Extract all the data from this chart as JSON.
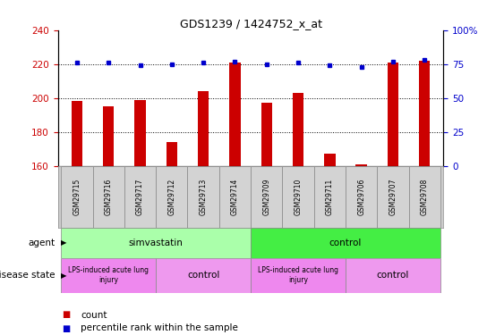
{
  "title": "GDS1239 / 1424752_x_at",
  "samples": [
    "GSM29715",
    "GSM29716",
    "GSM29717",
    "GSM29712",
    "GSM29713",
    "GSM29714",
    "GSM29709",
    "GSM29710",
    "GSM29711",
    "GSM29706",
    "GSM29707",
    "GSM29708"
  ],
  "count_values": [
    198,
    195,
    199,
    174,
    204,
    221,
    197,
    203,
    167,
    161,
    221,
    222
  ],
  "percentile_values": [
    76,
    76,
    74,
    75,
    76,
    77,
    75,
    76,
    74,
    73,
    77,
    78
  ],
  "ylim_left": [
    160,
    240
  ],
  "ylim_right": [
    0,
    100
  ],
  "yticks_left": [
    160,
    180,
    200,
    220,
    240
  ],
  "yticks_right": [
    0,
    25,
    50,
    75,
    100
  ],
  "bar_color": "#cc0000",
  "dot_color": "#0000cc",
  "bg_color": "#ffffff",
  "plot_bg": "#ffffff",
  "agent_simvastatin_color": "#aaffaa",
  "agent_control_color": "#44ee44",
  "disease_lps_color": "#ee88ee",
  "disease_control_color": "#ee88ee",
  "tick_label_color_left": "#cc0000",
  "tick_label_color_right": "#0000cc",
  "dotted_lines": [
    180,
    200,
    220
  ],
  "sample_bg_color": "#cccccc",
  "lps_split1": 3,
  "lps_split2": 6,
  "agent_split": 6
}
